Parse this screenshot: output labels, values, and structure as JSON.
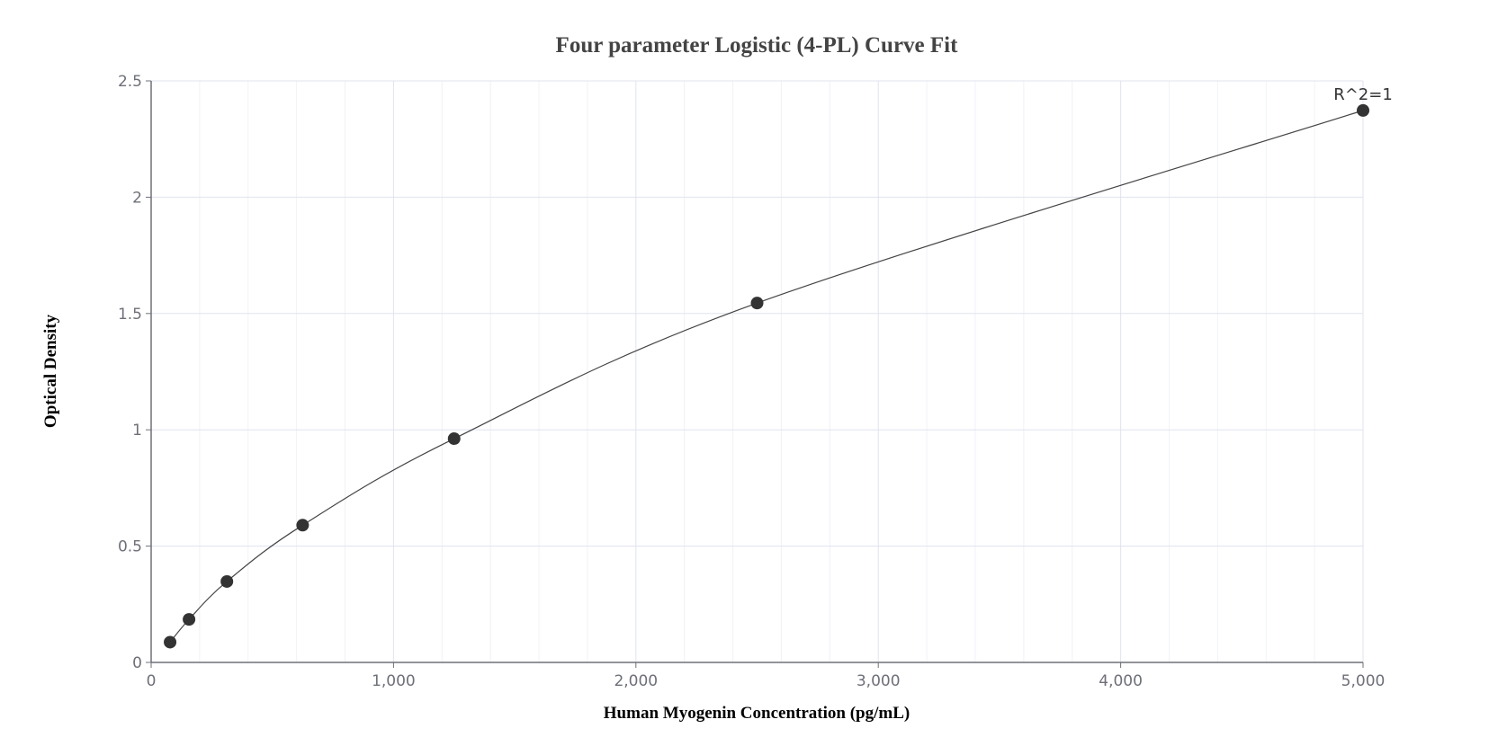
{
  "chart_data": {
    "type": "scatter",
    "title": "Four parameter Logistic (4-PL) Curve Fit",
    "xlabel": "Human Myogenin Concentration (pg/mL)",
    "ylabel": "Optical Density",
    "xlim": [
      0,
      5000
    ],
    "ylim": [
      0,
      2.5
    ],
    "xticks": [
      0,
      1000,
      2000,
      3000,
      4000,
      5000
    ],
    "xtick_labels": [
      "0",
      "1,000",
      "2,000",
      "3,000",
      "4,000",
      "5,000"
    ],
    "yticks": [
      0,
      0.5,
      1,
      1.5,
      2,
      2.5
    ],
    "ytick_labels": [
      "0",
      "0.5",
      "1",
      "1.5",
      "2",
      "2.5"
    ],
    "grid": true,
    "series": [
      {
        "x": [
          78.125,
          156.25,
          312.5,
          625,
          1250,
          2500,
          5000
        ],
        "y": [
          0.087,
          0.185,
          0.348,
          0.59,
          0.962,
          1.545,
          2.373
        ],
        "fit": "4-PL curve",
        "marker_color": "#333333",
        "line_color": "#444444"
      }
    ],
    "annotation": "R^2=1"
  }
}
